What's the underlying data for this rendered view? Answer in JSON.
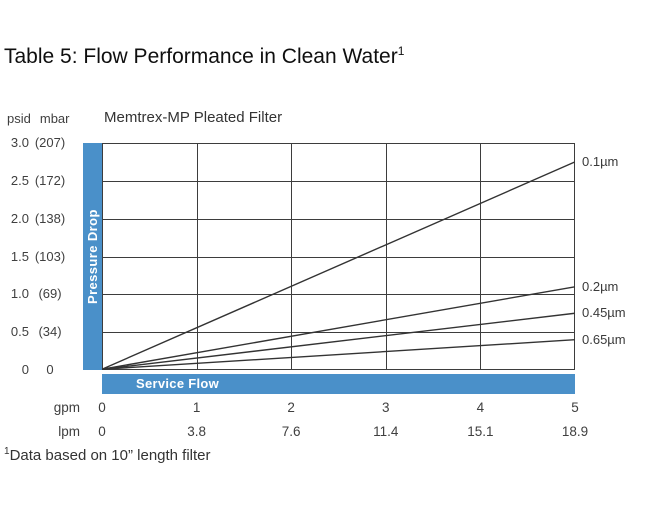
{
  "page": {
    "title": "Table 5: Flow Performance in Clean Water",
    "title_sup": "1",
    "footnote_sup": "1",
    "footnote_text": "Data based on 10” length filter"
  },
  "chart": {
    "title": "Memtrex-MP Pleated Filter",
    "y_units": {
      "psid": "psid",
      "mbar": "mbar"
    },
    "y_axis_label": "Pressure Drop",
    "x_axis_label": "Service Flow",
    "y_ticks": [
      {
        "psid": "3.0",
        "mbar": "(207)"
      },
      {
        "psid": "2.5",
        "mbar": "(172)"
      },
      {
        "psid": "2.0",
        "mbar": "(138)"
      },
      {
        "psid": "1.5",
        "mbar": "(103)"
      },
      {
        "psid": "1.0",
        "mbar": "(69)"
      },
      {
        "psid": "0.5",
        "mbar": "(34)"
      },
      {
        "psid": "0",
        "mbar": "0"
      }
    ],
    "x_rows": [
      {
        "unit": "gpm",
        "ticks": [
          "0",
          "1",
          "2",
          "3",
          "4",
          "5"
        ]
      },
      {
        "unit": "lpm",
        "ticks": [
          "0",
          "3.8",
          "7.6",
          "11.4",
          "15.1",
          "18.9"
        ]
      }
    ]
  },
  "chart_data": {
    "type": "line",
    "title": "Memtrex-MP Pleated Filter",
    "xlabel": "Service Flow (gpm / lpm)",
    "ylabel": "Pressure Drop (psid / mbar)",
    "xlim": [
      0,
      5
    ],
    "ylim": [
      0,
      3.0
    ],
    "grid": true,
    "x_tick_values": [
      0,
      1,
      2,
      3,
      4,
      5
    ],
    "x_tick_values_lpm": [
      0,
      3.8,
      7.6,
      11.4,
      15.1,
      18.9
    ],
    "y_tick_values_psid": [
      0,
      0.5,
      1.0,
      1.5,
      2.0,
      2.5,
      3.0
    ],
    "y_tick_values_mbar": [
      0,
      34,
      69,
      103,
      138,
      172,
      207
    ],
    "series": [
      {
        "name": "0.1µm",
        "x": [
          0,
          5
        ],
        "y": [
          0,
          2.75
        ]
      },
      {
        "name": "0.2µm",
        "x": [
          0,
          5
        ],
        "y": [
          0,
          1.1
        ]
      },
      {
        "name": "0.45µm",
        "x": [
          0,
          5
        ],
        "y": [
          0,
          0.75
        ]
      },
      {
        "name": "0.65µm",
        "x": [
          0,
          5
        ],
        "y": [
          0,
          0.4
        ]
      }
    ],
    "legend_position": "right-of-line-ends",
    "footnote": "Data based on 10” length filter"
  },
  "colors": {
    "accent_blue": "#4a90c9",
    "grid_line": "#3d3d3d",
    "series_line": "#333333",
    "bar_label_text": "#ffffff"
  }
}
